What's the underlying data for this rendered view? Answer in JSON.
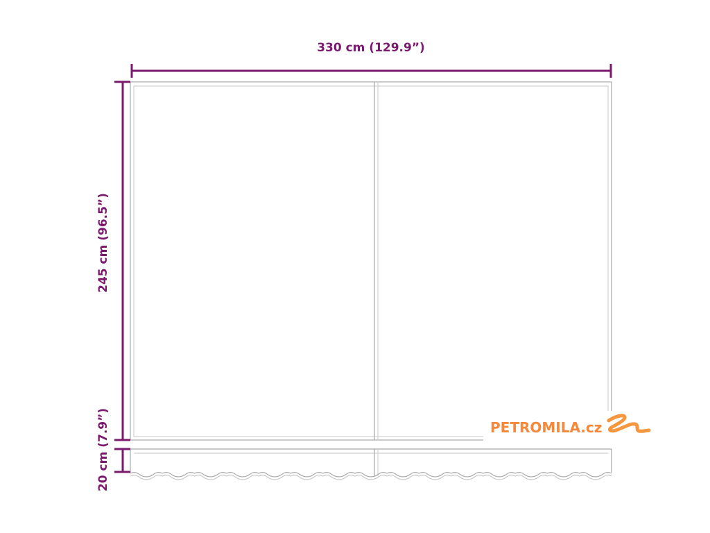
{
  "dimensions": {
    "width_label": "330 cm (129.9”)",
    "height_label": "245 cm (96.5”)",
    "valance_label": "20 cm (7.9”)"
  },
  "logo": {
    "text": "PETROMILA.cz"
  },
  "colors": {
    "dimension": "#7a1a6f",
    "outline": "#a8a8a8",
    "brand": "#f5883a"
  }
}
